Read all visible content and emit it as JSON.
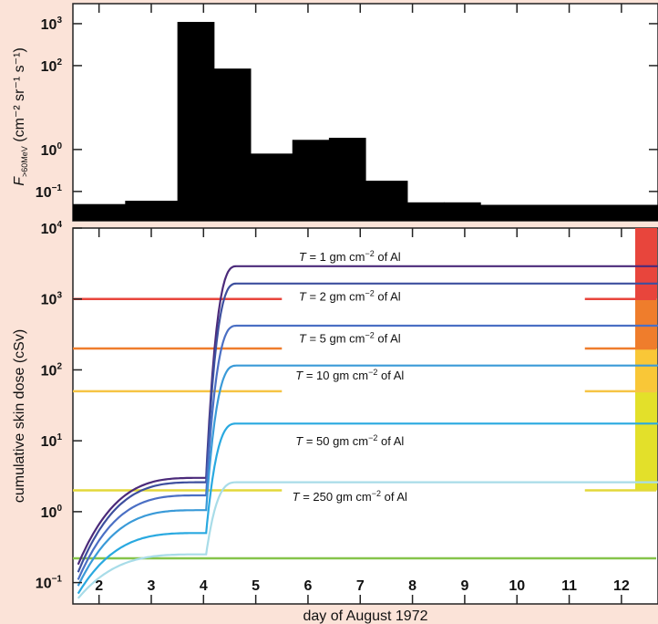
{
  "chart_data": [
    {
      "type": "bar",
      "panel": "top",
      "ylabel": "F>60MeV (cm⁻² sr⁻¹ s⁻¹)",
      "ylabel_main": "F",
      "ylabel_sub": ">60MeV",
      "ylabel_units": "(cm⁻² sr⁻¹ s⁻¹)",
      "yscale": "log",
      "ylim": [
        0.02,
        3000
      ],
      "xlim": [
        1.5,
        12.7
      ],
      "ytick_labels": [
        {
          "value": 1000,
          "base": "10",
          "exp": "3"
        },
        {
          "value": 100,
          "base": "10",
          "exp": "2"
        },
        {
          "value": 1,
          "base": "10",
          "exp": "0"
        },
        {
          "value": 0.1,
          "base": "10",
          "exp": "−1"
        }
      ],
      "bars": [
        {
          "x0": 1.5,
          "x1": 2.5,
          "value": 0.05
        },
        {
          "x0": 2.5,
          "x1": 3.5,
          "value": 0.06
        },
        {
          "x0": 3.5,
          "x1": 4.2,
          "value": 1100
        },
        {
          "x0": 4.2,
          "x1": 4.9,
          "value": 85
        },
        {
          "x0": 4.9,
          "x1": 5.7,
          "value": 0.8
        },
        {
          "x0": 5.7,
          "x1": 6.4,
          "value": 1.7
        },
        {
          "x0": 6.4,
          "x1": 7.1,
          "value": 1.9
        },
        {
          "x0": 7.1,
          "x1": 7.9,
          "value": 0.18
        },
        {
          "x0": 7.9,
          "x1": 8.6,
          "value": 0.055
        },
        {
          "x0": 8.6,
          "x1": 9.3,
          "value": 0.055
        },
        {
          "x0": 9.3,
          "x1": 12.7,
          "value": 0.048
        }
      ],
      "bar_color": "#000000"
    },
    {
      "type": "line",
      "panel": "bottom",
      "xlabel": "day of August 1972",
      "ylabel": "cumulative skin dose (cSv)",
      "yscale": "log",
      "ylim": [
        0.05,
        10000
      ],
      "xlim": [
        1.5,
        12.7
      ],
      "xticks": [
        2,
        3,
        4,
        5,
        6,
        7,
        8,
        9,
        10,
        11,
        12
      ],
      "xtick_labels": [
        "2",
        "3",
        "4",
        "5",
        "6",
        "7",
        "8",
        "9",
        "10",
        "11",
        "12"
      ],
      "ytick_labels": [
        {
          "value": 10000,
          "base": "10",
          "exp": "4"
        },
        {
          "value": 1000,
          "base": "10",
          "exp": "3"
        },
        {
          "value": 100,
          "base": "10",
          "exp": "2"
        },
        {
          "value": 10,
          "base": "10",
          "exp": "1"
        },
        {
          "value": 1,
          "base": "10",
          "exp": "0"
        },
        {
          "value": 0.1,
          "base": "10",
          "exp": "−1"
        }
      ],
      "series": [
        {
          "name": "T = 1 gm cm⁻² of Al",
          "label_parts": [
            "T",
            " = 1 gm cm",
            "−2",
            " of Al"
          ],
          "color": "#4b2a7a",
          "pre": 3.0,
          "post": 2900,
          "start": 0.18,
          "step_start": 4.05,
          "step_end": 4.65,
          "label_x": 6.8,
          "label_y": 4000
        },
        {
          "name": "T = 2 gm cm⁻² of Al",
          "label_parts": [
            "T",
            " = 2 gm cm",
            "−2",
            " of Al"
          ],
          "color": "#3d4f9e",
          "pre": 2.6,
          "post": 1650,
          "start": 0.14,
          "step_start": 4.05,
          "step_end": 4.65,
          "label_x": 6.8,
          "label_y": 1100
        },
        {
          "name": "T = 5 gm cm⁻² of Al",
          "label_parts": [
            "T",
            " = 5 gm cm",
            "−2",
            " of Al"
          ],
          "color": "#4a6fc4",
          "pre": 1.7,
          "post": 420,
          "start": 0.11,
          "step_start": 4.05,
          "step_end": 4.65,
          "label_x": 6.8,
          "label_y": 280
        },
        {
          "name": "T = 10 gm cm⁻² of Al",
          "label_parts": [
            "T",
            " = 10 gm cm",
            "−2",
            " of Al"
          ],
          "color": "#3a9ad8",
          "pre": 1.05,
          "post": 115,
          "start": 0.09,
          "step_start": 4.05,
          "step_end": 4.65,
          "label_x": 6.8,
          "label_y": 85
        },
        {
          "name": "T = 50 gm cm⁻² of Al",
          "label_parts": [
            "T",
            " = 50 gm cm",
            "−2",
            " of Al"
          ],
          "color": "#29a9e0",
          "pre": 0.5,
          "post": 17.5,
          "start": 0.07,
          "step_start": 4.05,
          "step_end": 4.65,
          "label_x": 6.8,
          "label_y": 10
        },
        {
          "name": "T = 250 gm cm⁻² of Al",
          "label_parts": [
            "T",
            " = 250 gm cm",
            "−2",
            " of Al"
          ],
          "color": "#a8dce8",
          "pre": 0.25,
          "post": 2.6,
          "start": 0.06,
          "step_start": 4.05,
          "step_end": 4.65,
          "label_x": 6.8,
          "label_y": 1.65
        }
      ],
      "reference_lines": [
        {
          "value": 1000,
          "color": "#e8453c",
          "segments": [
            [
              1.5,
              5.5
            ],
            [
              11.3,
              12.7
            ]
          ]
        },
        {
          "value": 200,
          "color": "#ef7d2c",
          "segments": [
            [
              1.5,
              5.5
            ],
            [
              11.3,
              12.7
            ]
          ]
        },
        {
          "value": 50,
          "color": "#f6c445",
          "segments": [
            [
              1.5,
              5.5
            ],
            [
              11.3,
              12.7
            ]
          ]
        },
        {
          "value": 2,
          "color": "#e3d83a",
          "segments": [
            [
              1.5,
              5.5
            ],
            [
              11.3,
              12.7
            ]
          ]
        },
        {
          "value": 0.22,
          "color": "#86c44a",
          "segments": [
            [
              1.5,
              12.7
            ]
          ]
        }
      ],
      "color_band": [
        {
          "from": 1000,
          "to": 10000,
          "color": "#e8453c"
        },
        {
          "from": 200,
          "to": 1000,
          "color": "#ef7d2c"
        },
        {
          "from": 50,
          "to": 200,
          "color": "#f9c737"
        },
        {
          "from": 2,
          "to": 50,
          "color": "#e3e02a"
        }
      ]
    }
  ]
}
